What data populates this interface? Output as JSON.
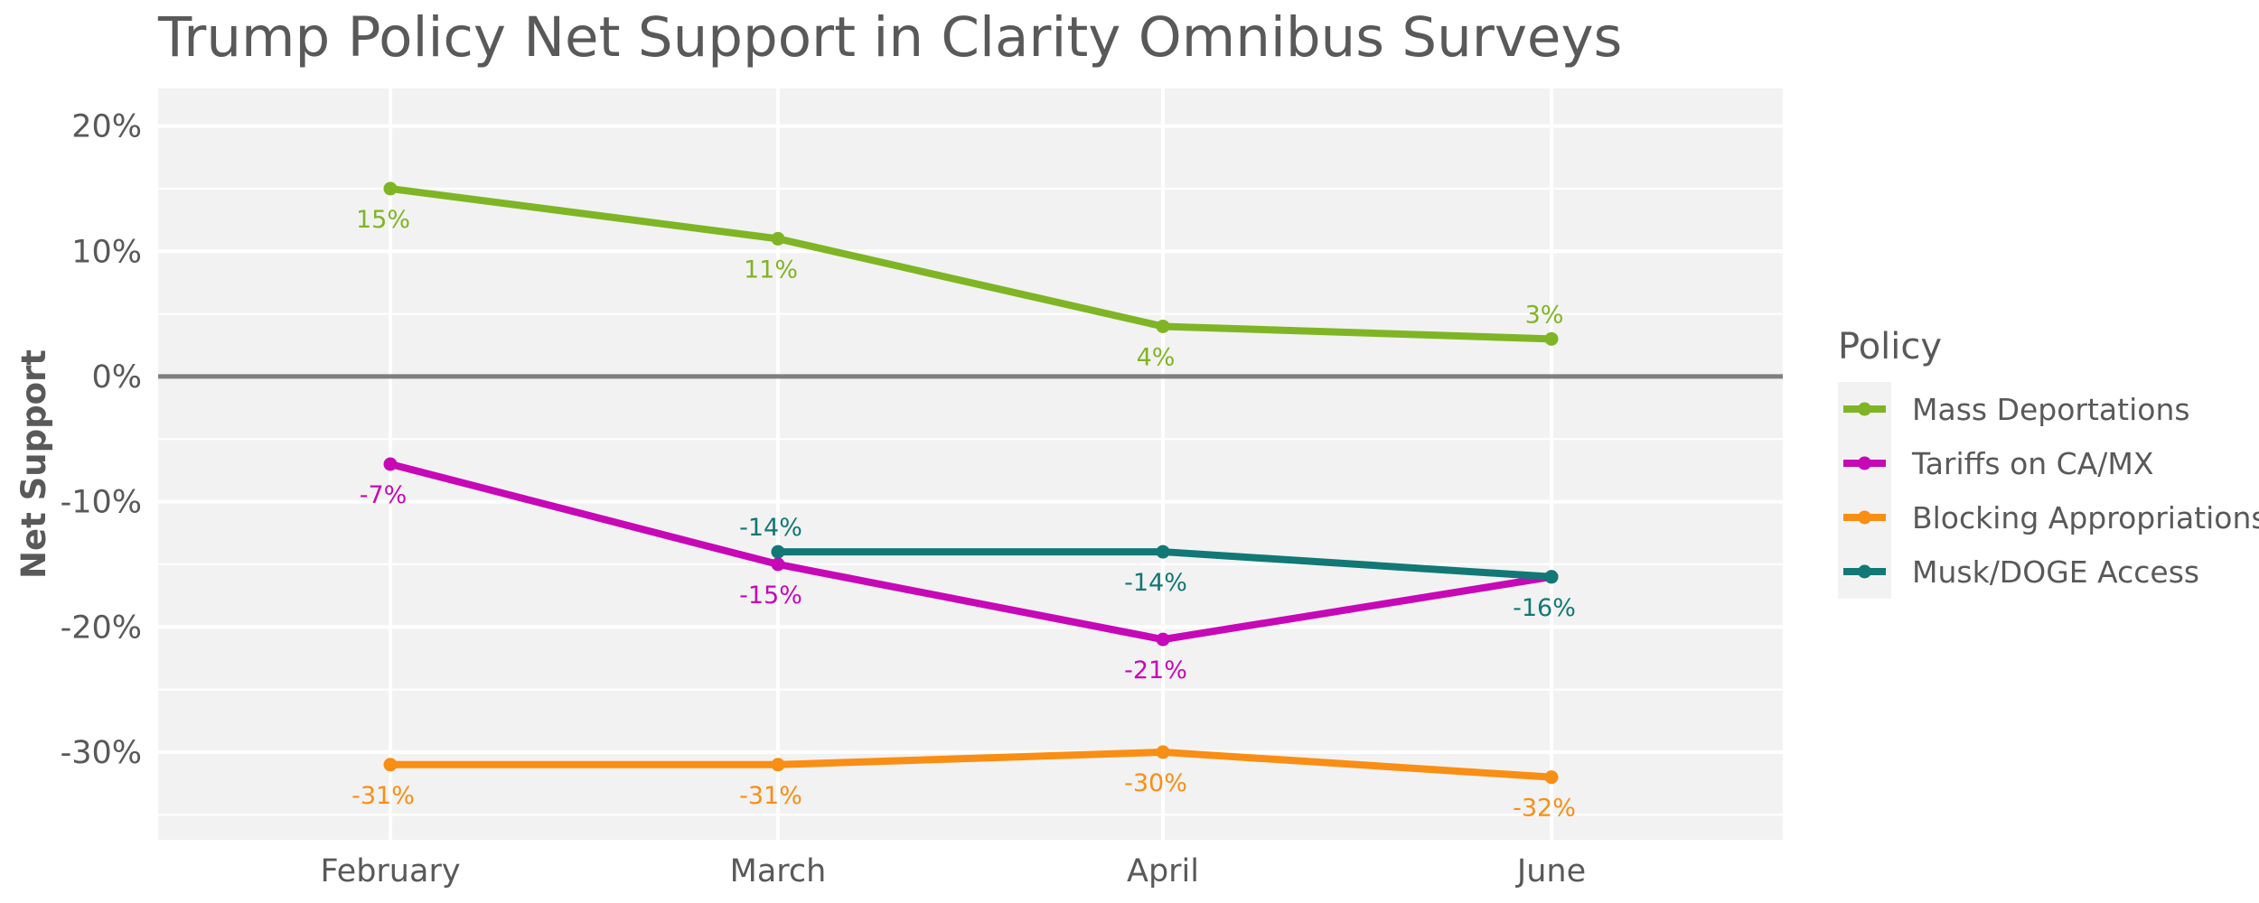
{
  "chart_data": {
    "type": "line",
    "title": "Trump Policy Net Support in Clarity Omnibus Surveys",
    "xlabel": "",
    "ylabel": "Net Support",
    "categories": [
      "February",
      "March",
      "April",
      "June"
    ],
    "ylim": [
      -37,
      23
    ],
    "y_ticks": [
      20,
      10,
      0,
      -10,
      -20,
      -30
    ],
    "y_tick_labels": [
      "20%",
      "10%",
      "0%",
      "-10%",
      "-20%",
      "-30%"
    ],
    "legend_title": "Policy",
    "legend_position": "right",
    "series": [
      {
        "name": "Mass Deportations",
        "color": "#7fb524",
        "values": [
          15,
          11,
          4,
          3
        ],
        "labels": [
          "15%",
          "11%",
          "4%",
          "3%"
        ],
        "label_pos": [
          "below",
          "below",
          "below",
          "above"
        ]
      },
      {
        "name": "Tariffs on CA/MX",
        "color": "#c708b7",
        "values": [
          -7,
          -15,
          -21,
          -16
        ],
        "labels": [
          "-7%",
          "-15%",
          "-21%",
          null
        ],
        "label_pos": [
          "below",
          "below",
          "below",
          null
        ]
      },
      {
        "name": "Blocking Appropriations",
        "color": "#f98e14",
        "values": [
          -31,
          -31,
          -30,
          -32
        ],
        "labels": [
          "-31%",
          "-31%",
          "-30%",
          "-32%"
        ],
        "label_pos": [
          "below",
          "below",
          "below",
          "below"
        ]
      },
      {
        "name": "Musk/DOGE Access",
        "color": "#117875",
        "values": [
          null,
          -14,
          -14,
          -16
        ],
        "labels": [
          null,
          "-14%",
          "-14%",
          "-16%"
        ],
        "label_pos": [
          null,
          "above",
          "below",
          "below"
        ]
      }
    ]
  }
}
